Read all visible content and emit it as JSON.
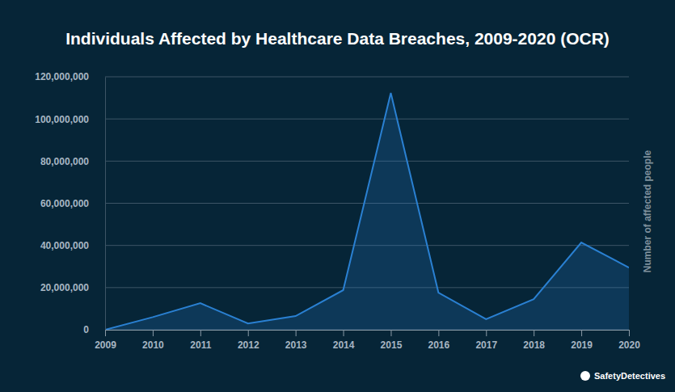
{
  "chart_data": {
    "type": "line",
    "title": "Individuals Affected by Healthcare Data Breaches, 2009-2020 (OCR)",
    "y_label": "Number of affected people",
    "annotations": [
      "SafetyDetectives"
    ],
    "categories": [
      "2009",
      "2010",
      "2011",
      "2012",
      "2013",
      "2014",
      "2015",
      "2016",
      "2017",
      "2018",
      "2019",
      "2020"
    ],
    "values": [
      0,
      6000000,
      12600000,
      3000000,
      6500000,
      18800000,
      112300000,
      17600000,
      5000000,
      14500000,
      41400000,
      29500000
    ],
    "color": "#2a80d2",
    "ylim": [
      0,
      120000000
    ],
    "yticks": [
      0,
      {
        "value": 20000000,
        "label": "20,000,000"
      },
      {
        "value": 40000000,
        "label": "40,000,000"
      },
      {
        "value": 60000000,
        "label": "60,000,000"
      },
      {
        "value": 80000000,
        "label": "80,000,000"
      },
      {
        "value": 100000000,
        "label": "100,000,000"
      },
      {
        "value": 120000000,
        "label": "120,000,000"
      }
    ],
    "grid": true
  }
}
